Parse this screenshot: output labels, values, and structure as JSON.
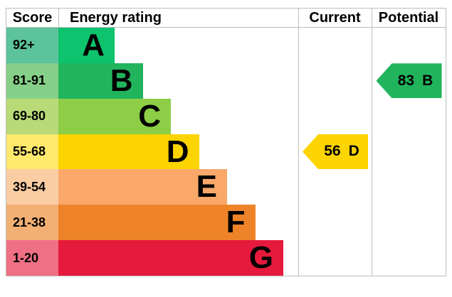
{
  "header": {
    "score": "Score",
    "energy_rating": "Energy rating",
    "current": "Current",
    "potential": "Potential"
  },
  "bands": [
    {
      "score_range": "92+",
      "letter": "A",
      "bar_color": "#0dc36d",
      "score_color": "#5cc39c"
    },
    {
      "score_range": "81-91",
      "letter": "B",
      "bar_color": "#21b45c",
      "score_color": "#86cf88"
    },
    {
      "score_range": "69-80",
      "letter": "C",
      "bar_color": "#8dce46",
      "score_color": "#b8da77"
    },
    {
      "score_range": "55-68",
      "letter": "D",
      "bar_color": "#fcd400",
      "score_color": "#ffe96d"
    },
    {
      "score_range": "39-54",
      "letter": "E",
      "bar_color": "#f9a86a",
      "score_color": "#fbcda2"
    },
    {
      "score_range": "21-38",
      "letter": "F",
      "bar_color": "#ee8329",
      "score_color": "#f3b075"
    },
    {
      "score_range": "1-20",
      "letter": "G",
      "bar_color": "#e51a3c",
      "score_color": "#ef7084"
    }
  ],
  "current": {
    "value": "56",
    "letter": "D",
    "color": "#fcd400",
    "band_index": 3
  },
  "potential": {
    "value": "83",
    "letter": "B",
    "color": "#21b45c",
    "band_index": 1
  },
  "chart_data": {
    "type": "bar",
    "title": "Energy rating",
    "columns": [
      "Score",
      "Energy rating",
      "Current",
      "Potential"
    ],
    "categories": [
      "A",
      "B",
      "C",
      "D",
      "E",
      "F",
      "G"
    ],
    "score_ranges": [
      "92+",
      "81-91",
      "69-80",
      "55-68",
      "39-54",
      "21-38",
      "1-20"
    ],
    "bar_lengths_relative": [
      1,
      2,
      3,
      4,
      5,
      6,
      7
    ],
    "band_colors": [
      "#0dc36d",
      "#21b45c",
      "#8dce46",
      "#fcd400",
      "#f9a86a",
      "#ee8329",
      "#e51a3c"
    ],
    "current": {
      "score": 56,
      "rating": "D"
    },
    "potential": {
      "score": 83,
      "rating": "B"
    },
    "legend_position": "none",
    "grid": false
  }
}
